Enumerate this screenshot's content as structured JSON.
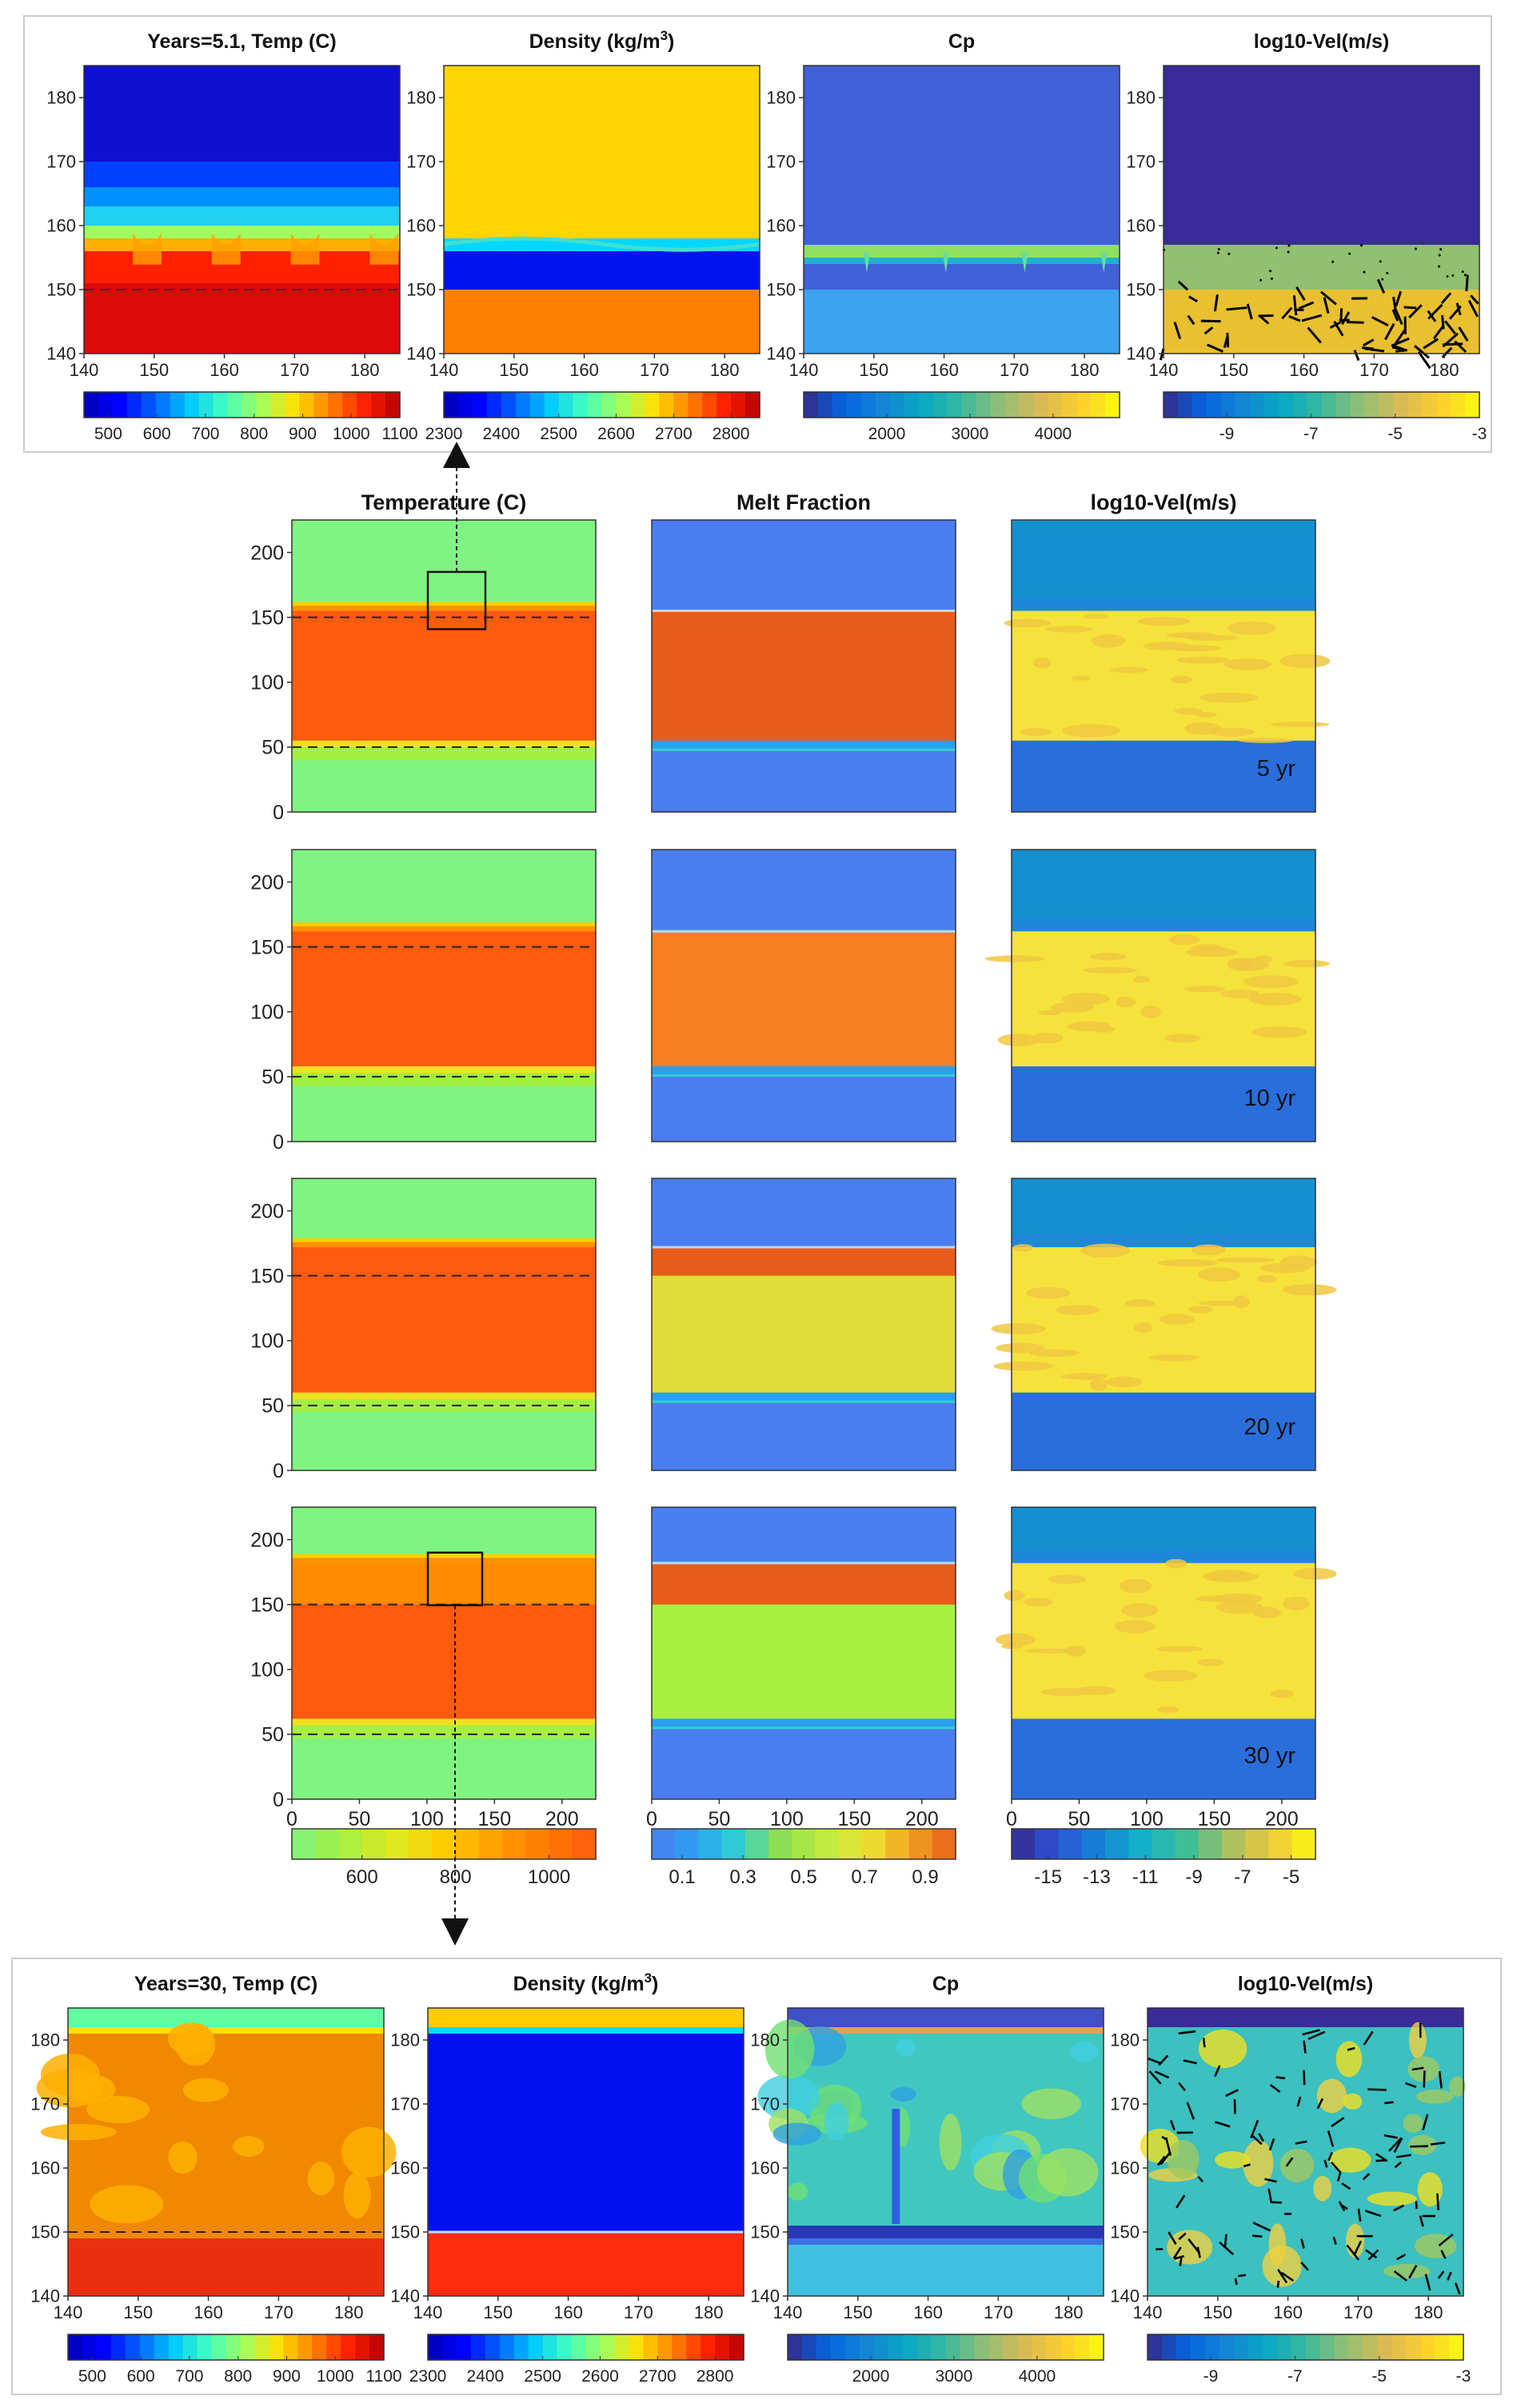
{
  "chart_data": {
    "type": "heatmap",
    "top_inset": {
      "panels": [
        {
          "key": "temp",
          "title": "Years=5.1, Temp (C)",
          "colormap": "jet",
          "cbar_ticks": [
            "500",
            "600",
            "700",
            "800",
            "900",
            "1000",
            "1100"
          ],
          "cbar_range": [
            450,
            1100
          ]
        },
        {
          "key": "dens",
          "title_main": "Density (kg/m",
          "title_sup": "3",
          "title_end": ")",
          "colormap": "jet",
          "cbar_ticks": [
            "2300",
            "2400",
            "2500",
            "2600",
            "2700",
            "2800"
          ],
          "cbar_range": [
            2300,
            2850
          ]
        },
        {
          "key": "cp",
          "title": "Cp",
          "colormap": "parula",
          "cbar_ticks": [
            "2000",
            "3000",
            "4000"
          ],
          "cbar_range": [
            1000,
            4800
          ]
        },
        {
          "key": "vel",
          "title": "log10-Vel(m/s)",
          "colormap": "parula",
          "cbar_ticks": [
            "-9",
            "-7",
            "-5",
            "-3"
          ],
          "cbar_range": [
            -10.5,
            -3
          ]
        }
      ],
      "x_ticks": [
        "140",
        "150",
        "160",
        "170",
        "180"
      ],
      "y_ticks": [
        "180",
        "170",
        "160",
        "150",
        "140"
      ],
      "xlim": [
        140,
        185
      ],
      "ylim": [
        140,
        185
      ],
      "dashed_line_y": 150
    },
    "main_grid": {
      "columns": [
        {
          "key": "temp",
          "title": "Temperature (C)",
          "cbar_ticks": [
            "600",
            "800",
            "1000"
          ],
          "cbar_range": [
            450,
            1100
          ]
        },
        {
          "key": "melt",
          "title": "Melt Fraction",
          "cbar_ticks": [
            "0.1",
            "0.3",
            "0.5",
            "0.7",
            "0.9"
          ],
          "cbar_range": [
            0,
            1
          ]
        },
        {
          "key": "vel",
          "title": "log10-Vel(m/s)",
          "cbar_ticks": [
            "-15",
            "-13",
            "-11",
            "-9",
            "-7",
            "-5"
          ],
          "cbar_range": [
            -16.5,
            -4
          ]
        }
      ],
      "rows": [
        {
          "label": "5 yr",
          "melt_top": 155,
          "melt_bottom": 55
        },
        {
          "label": "10 yr",
          "melt_top": 162,
          "melt_bottom": 58
        },
        {
          "label": "20 yr",
          "melt_top": 172,
          "melt_bottom": 60
        },
        {
          "label": "30 yr",
          "melt_top": 182,
          "melt_bottom": 62
        }
      ],
      "x_ticks": [
        "0",
        "50",
        "100",
        "150",
        "200"
      ],
      "y_ticks": [
        "200",
        "150",
        "100",
        "50",
        "0"
      ],
      "xlim": [
        0,
        225
      ],
      "ylim": [
        0,
        225
      ],
      "dashed_lines_y": [
        150,
        50
      ]
    },
    "bottom_inset": {
      "panels": [
        {
          "key": "temp",
          "title": "Years=30, Temp (C)",
          "cbar_ticks": [
            "500",
            "600",
            "700",
            "800",
            "900",
            "1000",
            "1100"
          ]
        },
        {
          "key": "dens",
          "title_main": "Density (kg/m",
          "title_sup": "3",
          "title_end": ")",
          "cbar_ticks": [
            "2300",
            "2400",
            "2500",
            "2600",
            "2700",
            "2800"
          ]
        },
        {
          "key": "cp",
          "title": "Cp",
          "cbar_ticks": [
            "2000",
            "3000",
            "4000"
          ]
        },
        {
          "key": "vel",
          "title": "log10-Vel(m/s)",
          "cbar_ticks": [
            "-9",
            "-7",
            "-5",
            "-3"
          ]
        }
      ],
      "x_ticks": [
        "140",
        "150",
        "160",
        "170",
        "180"
      ],
      "y_ticks": [
        "180",
        "170",
        "160",
        "150",
        "140"
      ],
      "xlim": [
        140,
        185
      ],
      "ylim": [
        140,
        185
      ],
      "dashed_line_y": 150
    }
  },
  "colors": {
    "jet": [
      "#0000b4",
      "#0000ff",
      "#0060ff",
      "#00c8ff",
      "#40ffc0",
      "#a0ff60",
      "#ffe000",
      "#ff8000",
      "#ff2000",
      "#b40000"
    ],
    "parula": [
      "#352a87",
      "#0363e1",
      "#1485d4",
      "#06a7c6",
      "#38b99e",
      "#92bf73",
      "#d9ba56",
      "#fcce2e",
      "#f9fb0e"
    ],
    "temp_main": [
      "#80f480",
      "#a4f040",
      "#e0e820",
      "#ffcc00",
      "#ffa000",
      "#ff7a00",
      "#ff5a10"
    ],
    "melt_main": [
      "#4a7ef0",
      "#2aa0f0",
      "#30d0d0",
      "#90e050",
      "#c0ec40",
      "#f0e030",
      "#f0a020",
      "#e85c1a"
    ],
    "vel_main": [
      "#352a87",
      "#2c52d6",
      "#1481d6",
      "#13b0c8",
      "#3cbf98",
      "#a4c064",
      "#f0c83a",
      "#f9fb0e"
    ]
  }
}
